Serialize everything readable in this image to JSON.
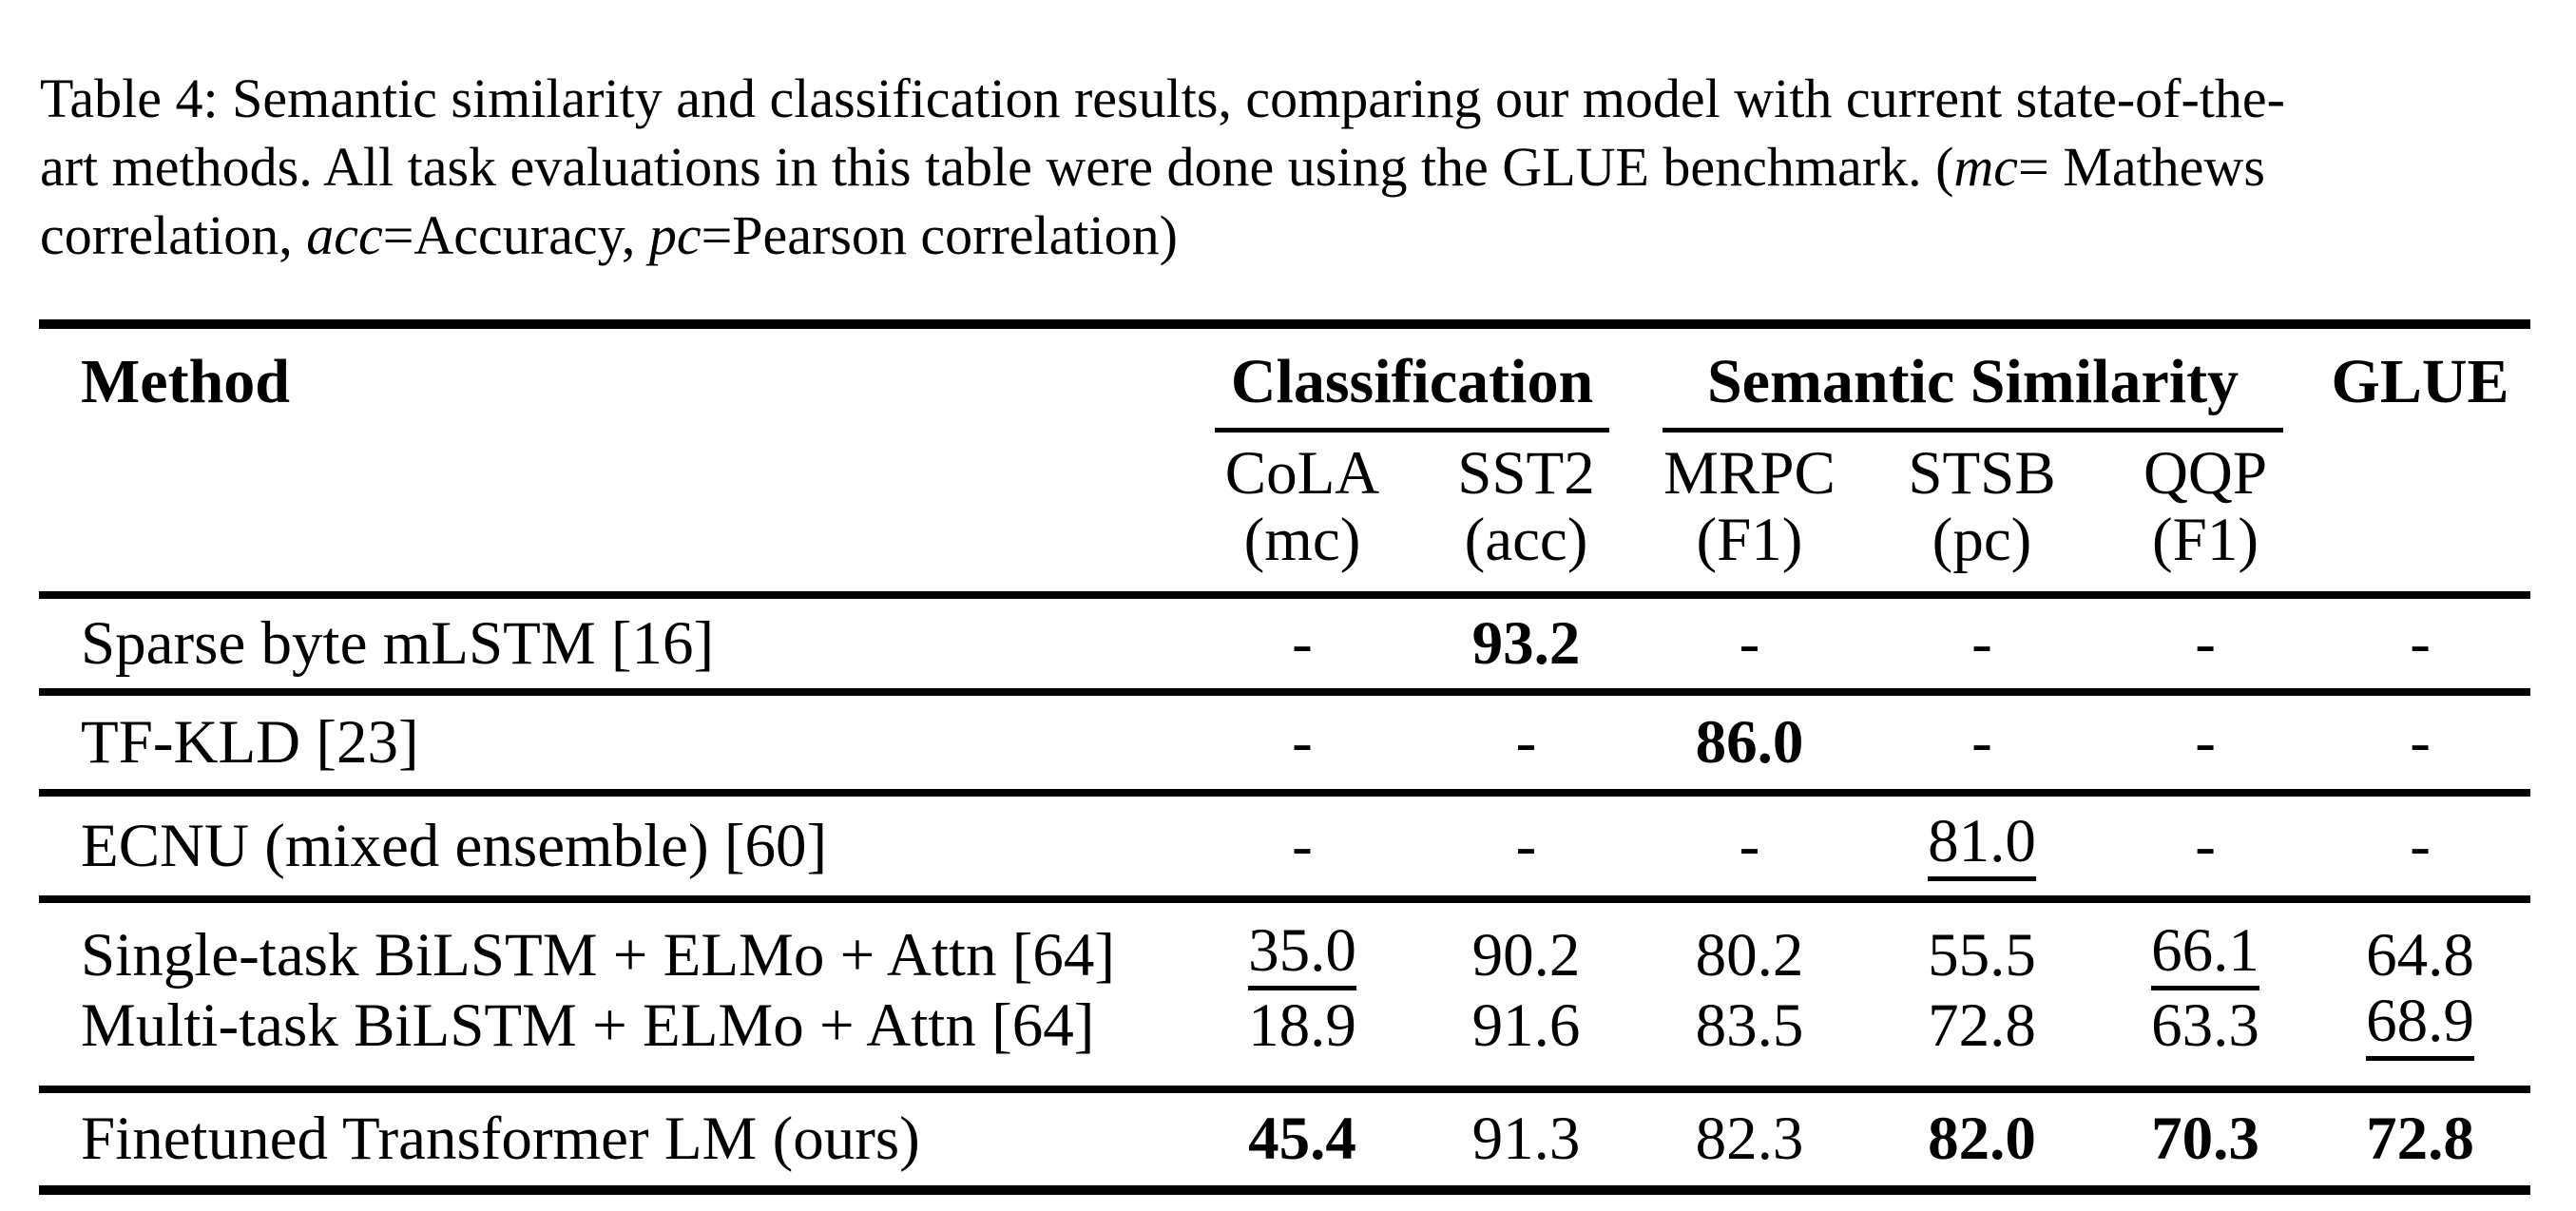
{
  "colors": {
    "text": "#000000",
    "background": "#ffffff",
    "rule": "#000000"
  },
  "caption": {
    "line1": [
      {
        "t": "Table 4: Semantic similarity and classification results, comparing our model with current state-of-the-"
      }
    ],
    "line2": [
      {
        "t": "art methods. All task evaluations in this table were done using the GLUE benchmark. ("
      },
      {
        "t": "mc",
        "italic": true
      },
      {
        "t": "= Mathews"
      }
    ],
    "line3": [
      {
        "t": "correlation, "
      },
      {
        "t": "acc",
        "italic": true
      },
      {
        "t": "=Accuracy, "
      },
      {
        "t": "pc",
        "italic": true
      },
      {
        "t": "=Pearson correlation)"
      }
    ]
  },
  "table": {
    "method_header": "Method",
    "groups": [
      {
        "label": "Classification"
      },
      {
        "label": "Semantic Similarity"
      },
      {
        "label": "GLUE"
      }
    ],
    "columns": [
      {
        "name": "CoLA",
        "metric": "(mc)"
      },
      {
        "name": "SST2",
        "metric": "(acc)"
      },
      {
        "name": "MRPC",
        "metric": "(F1)"
      },
      {
        "name": "STSB",
        "metric": "(pc)"
      },
      {
        "name": "QQP",
        "metric": "(F1)"
      }
    ],
    "rows": [
      {
        "method": "Sparse byte mLSTM [16]",
        "cells": [
          {
            "v": "-"
          },
          {
            "v": "93.2",
            "style": "bold"
          },
          {
            "v": "-"
          },
          {
            "v": "-"
          },
          {
            "v": "-"
          },
          {
            "v": "-"
          }
        ]
      },
      {
        "method": "TF-KLD [23]",
        "cells": [
          {
            "v": "-"
          },
          {
            "v": "-"
          },
          {
            "v": "86.0",
            "style": "bold"
          },
          {
            "v": "-"
          },
          {
            "v": "-"
          },
          {
            "v": "-"
          }
        ]
      },
      {
        "method": "ECNU (mixed ensemble) [60]",
        "cells": [
          {
            "v": "-"
          },
          {
            "v": "-"
          },
          {
            "v": "-"
          },
          {
            "v": "81.0",
            "style": "underline"
          },
          {
            "v": "-"
          },
          {
            "v": "-"
          }
        ]
      },
      {
        "method": "Single-task BiLSTM + ELMo + Attn [64]",
        "cells": [
          {
            "v": "35.0",
            "style": "underline"
          },
          {
            "v": "90.2"
          },
          {
            "v": "80.2"
          },
          {
            "v": "55.5"
          },
          {
            "v": "66.1",
            "style": "underline"
          },
          {
            "v": "64.8"
          }
        ]
      },
      {
        "method": "Multi-task BiLSTM + ELMo + Attn [64]",
        "cells": [
          {
            "v": "18.9"
          },
          {
            "v": "91.6"
          },
          {
            "v": "83.5"
          },
          {
            "v": "72.8"
          },
          {
            "v": "63.3"
          },
          {
            "v": "68.9",
            "style": "underline"
          }
        ]
      },
      {
        "method": "Finetuned Transformer LM (ours)",
        "cells": [
          {
            "v": "45.4",
            "style": "bold"
          },
          {
            "v": "91.3"
          },
          {
            "v": "82.3"
          },
          {
            "v": "82.0",
            "style": "bold"
          },
          {
            "v": "70.3",
            "style": "bold"
          },
          {
            "v": "72.8",
            "style": "bold"
          }
        ]
      }
    ]
  }
}
